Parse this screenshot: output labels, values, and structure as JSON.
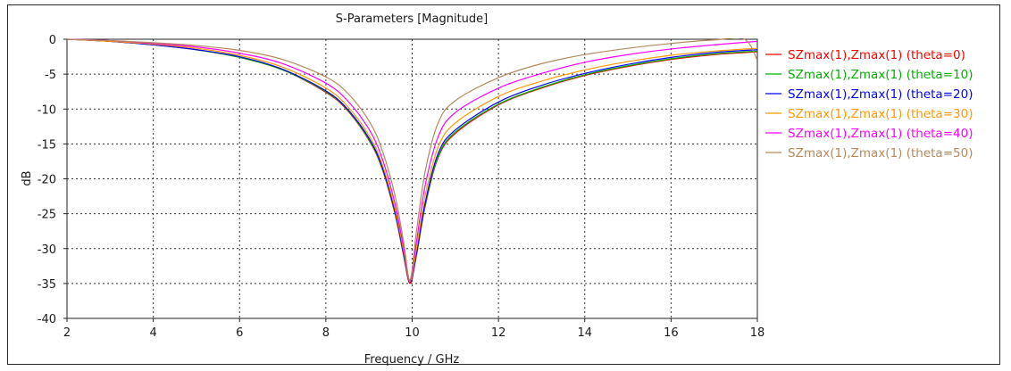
{
  "chart_data": {
    "type": "line",
    "title": "S-Parameters [Magnitude]",
    "xlabel": "Frequency / GHz",
    "ylabel": "dB",
    "xlim": [
      2,
      18
    ],
    "ylim": [
      -40,
      0
    ],
    "xticks": [
      2,
      4,
      6,
      8,
      10,
      12,
      14,
      16,
      18
    ],
    "yticks": [
      0,
      -5,
      -10,
      -15,
      -20,
      -25,
      -30,
      -35,
      -40
    ],
    "grid": true,
    "legend_position": "right",
    "series": [
      {
        "name": "SZmax(1),Zmax(1) (theta=0)",
        "color": "#ff0000",
        "x": [
          2,
          3,
          4,
          5,
          6,
          7,
          8,
          8.5,
          9,
          9.3,
          9.6,
          9.8,
          9.95,
          10.1,
          10.3,
          10.6,
          11,
          12,
          13,
          14,
          15,
          16,
          17,
          18
        ],
        "y": [
          0,
          -0.3,
          -0.8,
          -1.5,
          -2.6,
          -4.4,
          -7.6,
          -10.2,
          -14.5,
          -18.5,
          -25,
          -31,
          -35,
          -31,
          -24,
          -17,
          -13.5,
          -9.4,
          -7,
          -5.2,
          -3.9,
          -2.9,
          -2.2,
          -1.8
        ]
      },
      {
        "name": "SZmax(1),Zmax(1) (theta=10)",
        "color": "#00b000",
        "x": [
          2,
          3,
          4,
          5,
          6,
          7,
          8,
          8.5,
          9,
          9.3,
          9.6,
          9.8,
          9.95,
          10.1,
          10.3,
          10.6,
          11,
          12,
          13,
          14,
          15,
          16,
          17,
          18
        ],
        "y": [
          0,
          -0.3,
          -0.8,
          -1.5,
          -2.6,
          -4.4,
          -7.5,
          -10.1,
          -14.4,
          -18.4,
          -24.8,
          -30.8,
          -34.8,
          -30.8,
          -23.8,
          -16.8,
          -13.3,
          -9.3,
          -6.9,
          -5.1,
          -3.8,
          -2.8,
          -2.1,
          -1.7
        ]
      },
      {
        "name": "SZmax(1),Zmax(1) (theta=20)",
        "color": "#0000ff",
        "x": [
          2,
          3,
          4,
          5,
          6,
          7,
          8,
          8.5,
          9,
          9.3,
          9.6,
          9.8,
          9.95,
          10.1,
          10.3,
          10.6,
          11,
          12,
          13,
          14,
          15,
          16,
          17,
          18
        ],
        "y": [
          0,
          -0.3,
          -0.8,
          -1.5,
          -2.5,
          -4.3,
          -7.4,
          -10,
          -14.2,
          -18.2,
          -24.6,
          -30.6,
          -34.8,
          -30.6,
          -23.5,
          -16.4,
          -13,
          -9,
          -6.6,
          -4.9,
          -3.6,
          -2.6,
          -1.9,
          -1.5
        ]
      },
      {
        "name": "SZmax(1),Zmax(1) (theta=30)",
        "color": "#ff9900",
        "x": [
          2,
          3,
          4,
          5,
          6,
          7,
          8,
          8.5,
          9,
          9.3,
          9.6,
          9.8,
          9.95,
          10.1,
          10.3,
          10.6,
          11,
          12,
          13,
          14,
          15,
          16,
          17,
          18
        ],
        "y": [
          0,
          -0.3,
          -0.7,
          -1.3,
          -2.3,
          -4,
          -7,
          -9.6,
          -13.8,
          -17.8,
          -24.2,
          -30.2,
          -34.7,
          -30,
          -22.5,
          -15.5,
          -12,
          -8.2,
          -6,
          -4.4,
          -3.2,
          -2.3,
          -1.7,
          -1.3
        ]
      },
      {
        "name": "SZmax(1),Zmax(1) (theta=40)",
        "color": "#ff00ff",
        "x": [
          2,
          3,
          4,
          5,
          6,
          7,
          8,
          8.5,
          9,
          9.3,
          9.6,
          9.8,
          9.95,
          10.1,
          10.3,
          10.6,
          11,
          12,
          13,
          14,
          15,
          16,
          17,
          18
        ],
        "y": [
          0,
          -0.2,
          -0.6,
          -1.1,
          -2,
          -3.5,
          -6.3,
          -8.8,
          -12.9,
          -17,
          -23.5,
          -29.8,
          -34.6,
          -29,
          -21,
          -14,
          -10.5,
          -7,
          -4.9,
          -3.3,
          -2.2,
          -1.4,
          -0.8,
          -0.3
        ]
      },
      {
        "name": "SZmax(1),Zmax(1) (theta=50)",
        "color": "#b5895a",
        "x": [
          2,
          3,
          4,
          5,
          6,
          7,
          8,
          8.5,
          9,
          9.3,
          9.6,
          9.8,
          9.95,
          10.1,
          10.3,
          10.6,
          11,
          12,
          13,
          14,
          15,
          16,
          17,
          17.7,
          18
        ],
        "y": [
          0,
          -0.2,
          -0.5,
          -0.9,
          -1.6,
          -2.9,
          -5.4,
          -7.7,
          -11.7,
          -15.8,
          -22.3,
          -29,
          -34.5,
          -27.5,
          -19,
          -12,
          -8.8,
          -5.5,
          -3.5,
          -2.2,
          -1.3,
          -0.6,
          -0.1,
          0,
          -3
        ]
      }
    ]
  }
}
